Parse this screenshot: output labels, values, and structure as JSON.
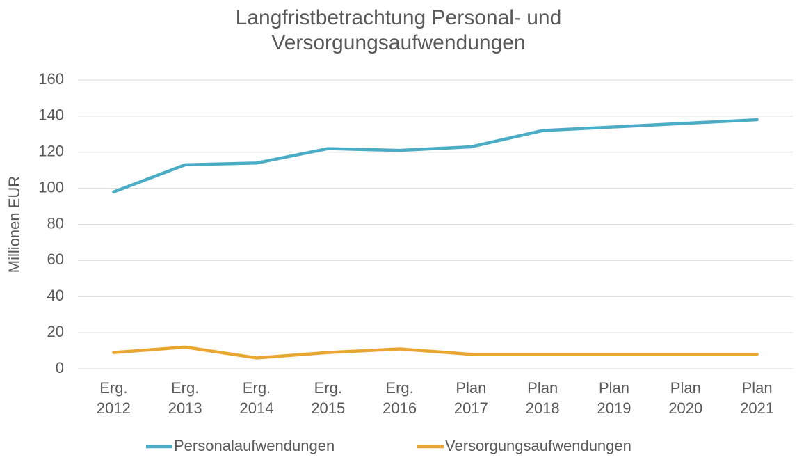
{
  "chart_data": {
    "type": "line",
    "title": "Langfristbetrachtung Personal- und Versorgungsaufwendungen",
    "y_label": "Millionen EUR",
    "categories": [
      "Erg. 2012",
      "Erg. 2013",
      "Erg. 2014",
      "Erg. 2015",
      "Erg. 2016",
      "Plan 2017",
      "Plan 2018",
      "Plan 2019",
      "Plan 2020",
      "Plan 2021"
    ],
    "series": [
      {
        "name": "Personalaufwendungen",
        "color": "#4bacc6",
        "values": [
          98,
          113,
          114,
          122,
          121,
          123,
          132,
          134,
          136,
          138
        ]
      },
      {
        "name": "Versorgungsaufwendungen",
        "color": "#eaa632",
        "values": [
          9,
          12,
          6,
          9,
          11,
          8,
          8,
          8,
          8,
          8
        ]
      }
    ],
    "ylim": [
      0,
      160
    ],
    "yticks": [
      0,
      20,
      40,
      60,
      80,
      100,
      120,
      140,
      160
    ],
    "grid": true,
    "legend": "bottom"
  }
}
